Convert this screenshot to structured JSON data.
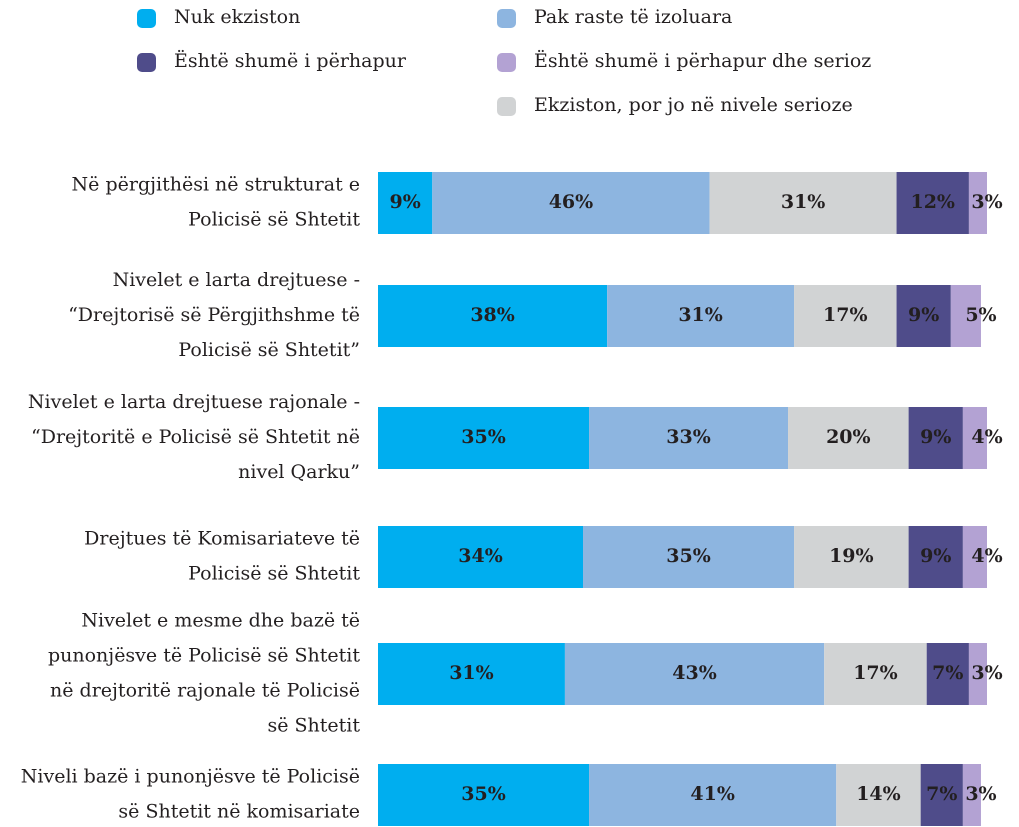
{
  "chart_data": {
    "type": "stacked-bar",
    "categories": [
      [
        "Në përgjithësi në strukturat e",
        "Policisë së Shtetit"
      ],
      [
        "Nivelet e larta drejtuese -",
        "“Drejtorisë së Përgjithshme të",
        "Policisë së Shtetit”"
      ],
      [
        "Nivelet e larta drejtuese rajonale  -",
        "“Drejtoritë e Policisë së Shtetit në",
        "nivel Qarku”"
      ],
      [
        "Drejtues të Komisariateve të",
        "Policisë së Shtetit"
      ],
      [
        "Nivelet e mesme dhe bazë të",
        "punonjësve të Policisë së Shtetit",
        "në  drejtoritë rajonale të Policisë",
        "së Shtetit"
      ],
      [
        "Niveli bazë i punonjësve të Policisë",
        "së Shtetit në komisariate"
      ]
    ],
    "series": [
      {
        "name": "Nuk ekziston",
        "color": "#00aeef",
        "values": [
          9,
          38,
          35,
          34,
          31,
          35
        ],
        "value_labels": [
          "9%",
          "38%",
          "35%",
          "34%",
          "31%",
          "35%"
        ]
      },
      {
        "name": "Pak raste të izoluara",
        "color": "#8db5e0",
        "values": [
          46,
          31,
          33,
          35,
          43,
          41
        ],
        "value_labels": [
          "46%",
          "31%",
          "33%",
          "35%",
          "43%",
          "41%"
        ]
      },
      {
        "name": "Ekziston, por jo në nivele serioze",
        "color": "#d1d3d4",
        "values": [
          31,
          17,
          20,
          19,
          17,
          14
        ],
        "value_labels": [
          "31%",
          "17%",
          "20%",
          "19%",
          "17%",
          "14%"
        ]
      },
      {
        "name": "Është shumë i përhapur",
        "color": "#4f4c8a",
        "values": [
          12,
          9,
          9,
          9,
          7,
          7
        ],
        "value_labels": [
          "12%",
          "9%",
          "9%",
          "9%",
          "7%",
          "7%"
        ]
      },
      {
        "name": "Është shumë i përhapur dhe serioz",
        "color": "#b3a2d3",
        "values": [
          3,
          5,
          4,
          4,
          3,
          3
        ],
        "value_labels": [
          "3%",
          "5%",
          "4%",
          "4%",
          "3%",
          "3%"
        ]
      }
    ],
    "xlim": [
      0,
      101
    ]
  }
}
